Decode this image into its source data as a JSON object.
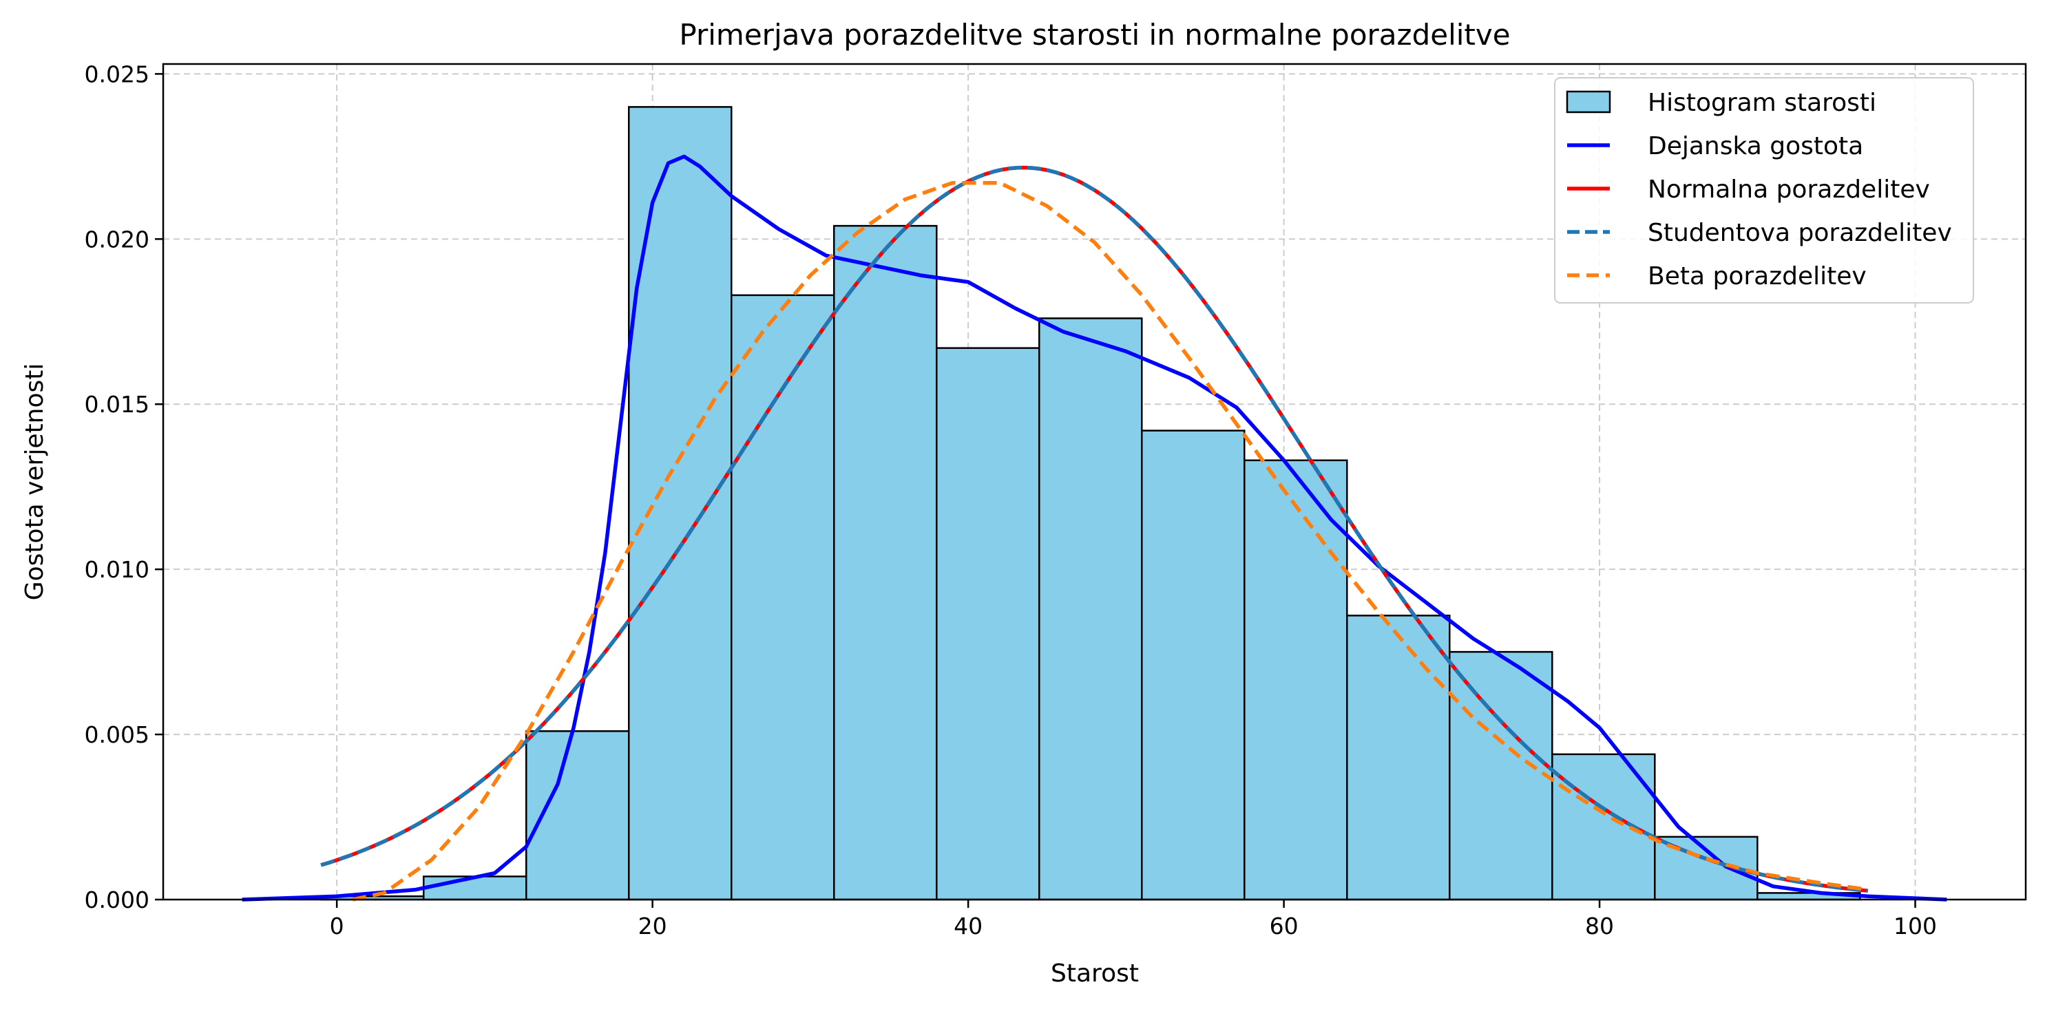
{
  "chart_data": {
    "type": "bar",
    "title": "Primerjava porazdelitve starosti in normalne porazdelitve",
    "xlabel": "Starost",
    "ylabel": "Gostota verjetnosti",
    "xlim": [
      -11,
      107
    ],
    "ylim": [
      0,
      0.0253
    ],
    "grid": true,
    "legend_position": "top-right",
    "x_ticks": [
      "0",
      "20",
      "40",
      "60",
      "80",
      "100"
    ],
    "y_ticks": [
      "0.000",
      "0.005",
      "0.010",
      "0.015",
      "0.020",
      "0.025"
    ],
    "colors": {
      "histogram_fill": "#87ceeb",
      "histogram_edge": "#000000",
      "kde": "#0000ff",
      "normal": "#ff0000",
      "student": "#1f77b4",
      "beta": "#ff7f0e",
      "grid": "#cccccc"
    },
    "histogram": {
      "name": "Histogram starosti",
      "bin_edges": [
        -1.0,
        5.5,
        12.0,
        18.5,
        25.0,
        31.5,
        38.0,
        44.5,
        51.0,
        57.5,
        64.0,
        70.5,
        77.0,
        83.5,
        90.0,
        96.5
      ],
      "values": [
        0.0001,
        0.0007,
        0.0051,
        0.024,
        0.0183,
        0.0204,
        0.0167,
        0.0176,
        0.0142,
        0.0133,
        0.0086,
        0.0075,
        0.0044,
        0.0019,
        0.0002
      ]
    },
    "series": [
      {
        "name": "Dejanska gostota",
        "style": "solid",
        "points": [
          [
            -6.0,
            0.0
          ],
          [
            0.0,
            0.0001
          ],
          [
            5.0,
            0.0003
          ],
          [
            10.0,
            0.0008
          ],
          [
            12.0,
            0.0016
          ],
          [
            14.0,
            0.0035
          ],
          [
            15.0,
            0.0052
          ],
          [
            16.0,
            0.0075
          ],
          [
            17.0,
            0.0105
          ],
          [
            18.0,
            0.0145
          ],
          [
            19.0,
            0.0185
          ],
          [
            20.0,
            0.0211
          ],
          [
            21.0,
            0.0223
          ],
          [
            22.0,
            0.0225
          ],
          [
            23.0,
            0.0222
          ],
          [
            25.0,
            0.0213
          ],
          [
            28.0,
            0.0203
          ],
          [
            31.0,
            0.0195
          ],
          [
            34.0,
            0.0192
          ],
          [
            37.0,
            0.0189
          ],
          [
            40.0,
            0.0187
          ],
          [
            43.0,
            0.0179
          ],
          [
            46.0,
            0.0172
          ],
          [
            50.0,
            0.0166
          ],
          [
            54.0,
            0.0158
          ],
          [
            57.0,
            0.0149
          ],
          [
            60.0,
            0.0133
          ],
          [
            63.0,
            0.0115
          ],
          [
            66.0,
            0.0101
          ],
          [
            69.0,
            0.009
          ],
          [
            72.0,
            0.0079
          ],
          [
            75.0,
            0.007
          ],
          [
            78.0,
            0.006
          ],
          [
            80.0,
            0.0052
          ],
          [
            82.0,
            0.004
          ],
          [
            85.0,
            0.0022
          ],
          [
            88.0,
            0.001
          ],
          [
            91.0,
            0.0004
          ],
          [
            94.0,
            0.0002
          ],
          [
            97.0,
            0.0001
          ],
          [
            102.0,
            0.0
          ]
        ]
      },
      {
        "name": "Normalna porazdelitev",
        "style": "solid",
        "mean": 43.5,
        "sd": 18.0,
        "x_range": [
          -1.0,
          97.0
        ]
      },
      {
        "name": "Studentova porazdelitev",
        "style": "dashed",
        "mean": 43.5,
        "sd": 18.0,
        "x_range": [
          -1.0,
          97.0
        ]
      },
      {
        "name": "Beta porazdelitev",
        "style": "dashed",
        "points": [
          [
            1.0,
            0.0
          ],
          [
            3.0,
            0.0002
          ],
          [
            6.0,
            0.0012
          ],
          [
            9.0,
            0.0028
          ],
          [
            12.0,
            0.005
          ],
          [
            15.0,
            0.0075
          ],
          [
            18.0,
            0.0102
          ],
          [
            21.0,
            0.0128
          ],
          [
            24.0,
            0.0152
          ],
          [
            27.0,
            0.0172
          ],
          [
            30.0,
            0.0189
          ],
          [
            33.0,
            0.0202
          ],
          [
            36.0,
            0.0212
          ],
          [
            39.0,
            0.0217
          ],
          [
            42.0,
            0.0217
          ],
          [
            45.0,
            0.021
          ],
          [
            48.0,
            0.0199
          ],
          [
            51.0,
            0.0183
          ],
          [
            54.0,
            0.0164
          ],
          [
            57.0,
            0.0144
          ],
          [
            60.0,
            0.0124
          ],
          [
            63.0,
            0.0105
          ],
          [
            66.0,
            0.0087
          ],
          [
            69.0,
            0.007
          ],
          [
            72.0,
            0.0055
          ],
          [
            75.0,
            0.0043
          ],
          [
            78.0,
            0.0033
          ],
          [
            81.0,
            0.0024
          ],
          [
            84.0,
            0.0017
          ],
          [
            87.0,
            0.0012
          ],
          [
            90.0,
            0.0008
          ],
          [
            94.0,
            0.0005
          ],
          [
            97.0,
            0.0003
          ]
        ]
      }
    ]
  }
}
